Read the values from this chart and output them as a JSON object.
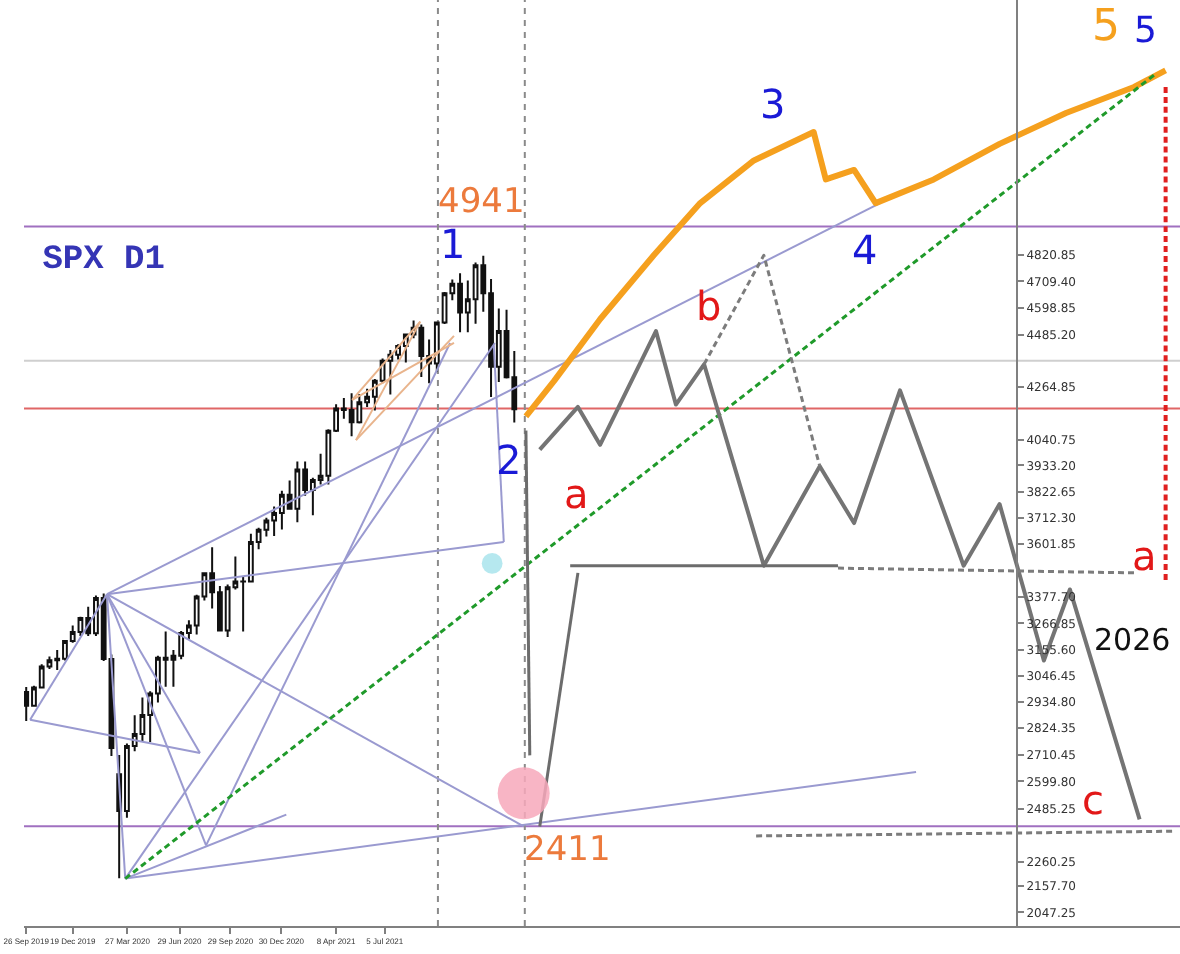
{
  "chart_data": {
    "type": "candlestick",
    "title": "SPX D1",
    "color": "#111111",
    "x": [
      "2019-09-26",
      "2019-10-10",
      "2019-10-24",
      "2019-11-07",
      "2019-11-21",
      "2019-12-05",
      "2019-12-19",
      "2020-01-02",
      "2020-01-16",
      "2020-01-30",
      "2020-02-13",
      "2020-02-27",
      "2020-03-12",
      "2020-03-26",
      "2020-04-09",
      "2020-04-23",
      "2020-05-07",
      "2020-05-21",
      "2020-06-04",
      "2020-06-18",
      "2020-07-02",
      "2020-07-16",
      "2020-07-30",
      "2020-08-13",
      "2020-08-27",
      "2020-09-10",
      "2020-09-24",
      "2020-10-08",
      "2020-10-22",
      "2020-11-05",
      "2020-11-19",
      "2020-12-03",
      "2020-12-17",
      "2020-12-31",
      "2021-01-14",
      "2021-01-28",
      "2021-02-11",
      "2021-02-25",
      "2021-03-11",
      "2021-03-25",
      "2021-04-08",
      "2021-04-22",
      "2021-05-06",
      "2021-05-20",
      "2021-06-03",
      "2021-06-17",
      "2021-07-01",
      "2021-07-15",
      "2021-07-29",
      "2021-08-12",
      "2021-08-26",
      "2021-09-09",
      "2021-09-23",
      "2021-10-07",
      "2021-10-21",
      "2021-11-04",
      "2021-11-18",
      "2021-12-02",
      "2021-12-16",
      "2021-12-30",
      "2022-01-13",
      "2022-01-27",
      "2022-02-10",
      "2022-02-24"
    ],
    "ohlc": [
      [
        2977,
        2998,
        2855,
        2919
      ],
      [
        2919,
        3004,
        2918,
        2996
      ],
      [
        2996,
        3094,
        2996,
        3085
      ],
      [
        3085,
        3127,
        3074,
        3111
      ],
      [
        3111,
        3154,
        3070,
        3118
      ],
      [
        3118,
        3197,
        3110,
        3192
      ],
      [
        3192,
        3258,
        3185,
        3230
      ],
      [
        3230,
        3295,
        3214,
        3290
      ],
      [
        3290,
        3337,
        3214,
        3225
      ],
      [
        3225,
        3385,
        3214,
        3374
      ],
      [
        3374,
        3393,
        3108,
        3116
      ],
      [
        3116,
        3136,
        2707,
        2741
      ],
      [
        2630,
        2711,
        2191,
        2475
      ],
      [
        2475,
        2760,
        2447,
        2750
      ],
      [
        2750,
        2879,
        2727,
        2800
      ],
      [
        2800,
        2954,
        2766,
        2880
      ],
      [
        2880,
        2980,
        2766,
        2971
      ],
      [
        2971,
        3130,
        2933,
        3122
      ],
      [
        3122,
        3233,
        2999,
        3113
      ],
      [
        3113,
        3155,
        2999,
        3130
      ],
      [
        3130,
        3235,
        3115,
        3226
      ],
      [
        3226,
        3280,
        3200,
        3258
      ],
      [
        3258,
        3388,
        3220,
        3380
      ],
      [
        3380,
        3481,
        3363,
        3478
      ],
      [
        3478,
        3588,
        3330,
        3398
      ],
      [
        3398,
        3425,
        3237,
        3237
      ],
      [
        3237,
        3431,
        3209,
        3419
      ],
      [
        3419,
        3549,
        3410,
        3443
      ],
      [
        3443,
        3466,
        3233,
        3444
      ],
      [
        3444,
        3645,
        3444,
        3610
      ],
      [
        3610,
        3670,
        3580,
        3662
      ],
      [
        3662,
        3712,
        3633,
        3701
      ],
      [
        3701,
        3760,
        3636,
        3733
      ],
      [
        3733,
        3826,
        3663,
        3810
      ],
      [
        3810,
        3870,
        3750,
        3750
      ],
      [
        3750,
        3950,
        3694,
        3916
      ],
      [
        3916,
        3950,
        3805,
        3830
      ],
      [
        3830,
        3881,
        3723,
        3872
      ],
      [
        3872,
        3983,
        3853,
        3890
      ],
      [
        3890,
        4086,
        3853,
        4080
      ],
      [
        4080,
        4191,
        4074,
        4173
      ],
      [
        4173,
        4218,
        4130,
        4167
      ],
      [
        4167,
        4238,
        4056,
        4115
      ],
      [
        4115,
        4235,
        4110,
        4200
      ],
      [
        4200,
        4257,
        4180,
        4223
      ],
      [
        4223,
        4298,
        4165,
        4291
      ],
      [
        4291,
        4384,
        4280,
        4375
      ],
      [
        4375,
        4420,
        4233,
        4400
      ],
      [
        4400,
        4445,
        4380,
        4437
      ],
      [
        4437,
        4490,
        4367,
        4486
      ],
      [
        4486,
        4545,
        4470,
        4514
      ],
      [
        4514,
        4528,
        4306,
        4395
      ],
      [
        4395,
        4465,
        4280,
        4363
      ],
      [
        4363,
        4540,
        4329,
        4536
      ],
      [
        4536,
        4665,
        4530,
        4660
      ],
      [
        4660,
        4718,
        4630,
        4700
      ],
      [
        4700,
        4744,
        4495,
        4578
      ],
      [
        4578,
        4713,
        4495,
        4634
      ],
      [
        4634,
        4790,
        4531,
        4778
      ],
      [
        4778,
        4818,
        4582,
        4660
      ],
      [
        4660,
        4720,
        4222,
        4350
      ],
      [
        4350,
        4595,
        4285,
        4500
      ],
      [
        4500,
        4590,
        4300,
        4305
      ],
      [
        4305,
        4416,
        4114,
        4170
      ]
    ],
    "series": [
      {
        "type": "line",
        "color": "#9a9ad0",
        "x": [
          "2020-02-19",
          "2019-10-03",
          null,
          "2019-10-03",
          "2020-08-05",
          null,
          "2020-02-19",
          "2020-08-05",
          null,
          "2020-02-19",
          "2022-02-05",
          null,
          "2020-02-19",
          "2023-12-17",
          null,
          "2020-03-23",
          "2024-02-20",
          null,
          "2020-03-23",
          "2021-01-08",
          null,
          "2020-02-19",
          "2020-03-23",
          null,
          "2022-02-05",
          "2022-01-18",
          null,
          "2020-02-19",
          "2022-03-13",
          null,
          "2020-03-23",
          "2022-01-20",
          null,
          "2020-02-19",
          "2020-08-16",
          null,
          "2020-08-16",
          "2021-10-31"
        ],
        "values": [
          3390,
          2860,
          null,
          2860,
          2720,
          null,
          3390,
          2720,
          null,
          3390,
          3610,
          null,
          3390,
          5040,
          null,
          2190,
          2640,
          null,
          2190,
          2460,
          null,
          3390,
          2190,
          null,
          3610,
          4440,
          null,
          3390,
          2410,
          null,
          2190,
          4450,
          null,
          3390,
          2330,
          null,
          2330,
          4450
        ]
      },
      {
        "type": "line",
        "color": "#e9b48c",
        "x": [
          "2021-05-14",
          "2021-09-07",
          null,
          "2021-05-14",
          "2021-11-07",
          null,
          "2021-05-07",
          "2021-09-07",
          null,
          "2021-05-07",
          "2021-11-07"
        ],
        "values": [
          4040,
          4540,
          null,
          4040,
          4480,
          null,
          4210,
          4540,
          null,
          4210,
          4450
        ]
      },
      {
        "type": "line",
        "color": "#f5a01e",
        "x": [
          "2022-03-17",
          "2022-05-07",
          "2022-07-29",
          "2022-11-03",
          "2023-01-26",
          "2023-05-03",
          "2023-08-19",
          "2023-09-10",
          "2023-10-31",
          "2023-12-09",
          "2024-03-23",
          "2024-07-20",
          "2024-11-17",
          "2025-03-20",
          "2025-05-16"
        ],
        "values": [
          4140,
          4290,
          4550,
          4820,
          5040,
          5220,
          5340,
          5140,
          5180,
          5040,
          5140,
          5290,
          5420,
          5530,
          5600
        ]
      },
      {
        "type": "line",
        "color": "#1f9a2a",
        "line_style": "dashed",
        "x": [
          "2020-03-23",
          "2025-04-25"
        ],
        "values": [
          2190,
          5580
        ]
      },
      {
        "type": "line",
        "color": "#747474",
        "x": [
          "2022-04-11",
          "2022-06-19",
          "2022-07-29",
          "2022-11-07",
          "2022-12-13",
          "2023-02-02",
          "2023-05-21",
          "2023-08-30",
          "2023-10-31",
          "2024-01-22",
          "2024-05-16",
          "2024-07-20",
          "2024-10-08",
          "2024-11-24",
          "2025-03-30"
        ],
        "values": [
          4000,
          4180,
          4020,
          4500,
          4190,
          4360,
          3510,
          3930,
          3690,
          4250,
          3510,
          3770,
          3110,
          3410,
          2440
        ]
      },
      {
        "type": "line",
        "color": "#7c7c7c",
        "line_style": "dashed",
        "x": [
          "2023-02-02",
          "2023-05-21",
          "2023-08-30",
          null,
          "2023-10-02",
          "2025-03-20",
          null,
          "2023-05-07",
          "2025-06-03"
        ],
        "values": [
          4360,
          4820,
          3930,
          null,
          3500,
          3480,
          null,
          2370,
          2390
        ]
      },
      {
        "type": "line",
        "color": "#6c6c6c",
        "x": [
          "2022-03-17",
          "2022-03-24",
          null,
          "2022-04-11",
          "2022-06-19",
          null,
          "2022-06-05",
          "2023-10-02"
        ],
        "values": [
          4080,
          2710,
          null,
          2410,
          3480,
          null,
          3510,
          3510
        ]
      },
      {
        "type": "line",
        "color": "#e02020",
        "line_style": "dashed",
        "x": [
          "2025-05-16",
          "2025-05-16"
        ],
        "values": [
          5530,
          3450
        ]
      },
      {
        "type": "bubble",
        "x": [
          "2022-03-13",
          "2022-01-15"
        ],
        "values": [
          2550,
          3520
        ],
        "sizes": [
          1,
          0.16
        ],
        "colors": [
          "#f7a8bb",
          "#a9e4ec"
        ]
      }
    ],
    "annotations": [
      {
        "text": "1",
        "x": "2021-12-30",
        "y": 4818
      },
      {
        "text": "2",
        "x": "2022-03-17",
        "y": 4140
      },
      {
        "text": "3",
        "x": "2023-08-19",
        "y": 5340
      },
      {
        "text": "4",
        "x": "2023-12-09",
        "y": 5040
      },
      {
        "text": "5",
        "x": "2025-05-16",
        "y": 5600
      },
      {
        "text": "5",
        "x": "2025-05-16",
        "y": 5600
      },
      {
        "text": "a",
        "x": "2022-07-29",
        "y": 4020
      },
      {
        "text": "b",
        "x": "2023-05-21",
        "y": 4820
      },
      {
        "text": "a",
        "x": "2025-03-20",
        "y": 3480
      },
      {
        "text": "c",
        "x": "2025-03-30",
        "y": 2440
      },
      {
        "text": "2026",
        "x": "2025-05-16",
        "y": 3450
      }
    ],
    "ref_lines": [
      {
        "axis": "y",
        "value": 4941,
        "label": "4941",
        "color": "#a070c0"
      },
      {
        "axis": "y",
        "value": 4375,
        "color": "#cfcfcf"
      },
      {
        "axis": "y",
        "value": 4173,
        "color": "#e06666"
      },
      {
        "axis": "y",
        "value": 2411,
        "label": "2411",
        "color": "#a070c0"
      },
      {
        "axis": "x",
        "value": "2021-10-09",
        "color": "#8a8a8a",
        "line_style": "dotted"
      },
      {
        "axis": "x",
        "value": "2022-03-15",
        "color": "#8a8a8a",
        "line_style": "dotted"
      }
    ],
    "xlim": [
      "2019-09-22",
      "2025-06-11"
    ],
    "xticks": [
      {
        "value": "2019-09-26",
        "label": "26 Sep 2019"
      },
      {
        "value": "2019-12-19",
        "label": "19 Dec 2019"
      },
      {
        "value": "2020-03-27",
        "label": "27 Mar 2020"
      },
      {
        "value": "2020-06-29",
        "label": "29 Jun 2020"
      },
      {
        "value": "2020-09-29",
        "label": "29 Sep 2020"
      },
      {
        "value": "2020-12-30",
        "label": "30 Dec 2020"
      },
      {
        "value": "2021-04-08",
        "label": "8 Apr 2021"
      },
      {
        "value": "2021-07-05",
        "label": "5 Jul 2021"
      }
    ],
    "ylim": [
      1990,
      5897
    ],
    "yticks": [
      {
        "value": 4820.85,
        "label": "4820.85"
      },
      {
        "value": 4709.4,
        "label": "4709.40"
      },
      {
        "value": 4598.85,
        "label": "4598.85"
      },
      {
        "value": 4485.2,
        "label": "4485.20"
      },
      {
        "value": 4264.85,
        "label": "4264.85"
      },
      {
        "value": 4040.75,
        "label": "4040.75"
      },
      {
        "value": 3933.2,
        "label": "3933.20"
      },
      {
        "value": 3822.65,
        "label": "3822.65"
      },
      {
        "value": 3712.3,
        "label": "3712.30"
      },
      {
        "value": 3601.85,
        "label": "3601.85"
      },
      {
        "value": 3377.7,
        "label": "3377.70"
      },
      {
        "value": 3266.85,
        "label": "3266.85"
      },
      {
        "value": 3155.6,
        "label": "3155.60"
      },
      {
        "value": 3046.45,
        "label": "3046.45"
      },
      {
        "value": 2934.8,
        "label": "2934.80"
      },
      {
        "value": 2824.35,
        "label": "2824.35"
      },
      {
        "value": 2710.45,
        "label": "2710.45"
      },
      {
        "value": 2599.8,
        "label": "2599.80"
      },
      {
        "value": 2485.25,
        "label": "2485.25"
      },
      {
        "value": 2260.25,
        "label": "2260.25"
      },
      {
        "value": 2157.7,
        "label": "2157.70"
      },
      {
        "value": 2047.25,
        "label": "2047.25"
      }
    ]
  }
}
